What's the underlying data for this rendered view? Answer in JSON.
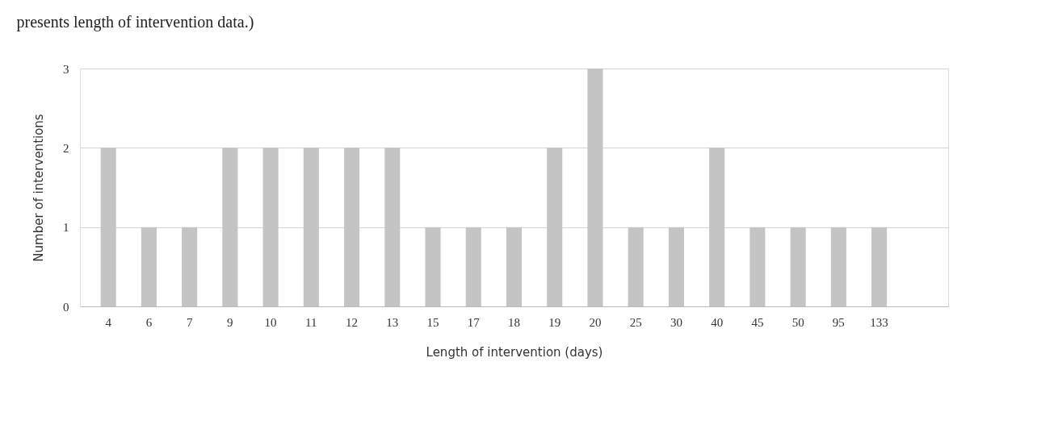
{
  "chart_data": {
    "type": "bar",
    "title": "presents length of intervention data.)",
    "xlabel": "Length of intervention (days)",
    "ylabel": "Number of interventions",
    "categories": [
      "4",
      "6",
      "7",
      "9",
      "10",
      "11",
      "12",
      "13",
      "15",
      "17",
      "18",
      "19",
      "20",
      "25",
      "30",
      "40",
      "45",
      "50",
      "95",
      "133"
    ],
    "series": [
      {
        "color": "#c4c4c4",
        "values": [
          2,
          1,
          1,
          2,
          2,
          2,
          2,
          2,
          1,
          1,
          1,
          2,
          3,
          1,
          1,
          2,
          1,
          1,
          1,
          1
        ]
      }
    ],
    "ylim": [
      0,
      3
    ],
    "yticks": [
      0,
      1,
      2,
      3
    ],
    "grid": "y",
    "legend": false
  }
}
